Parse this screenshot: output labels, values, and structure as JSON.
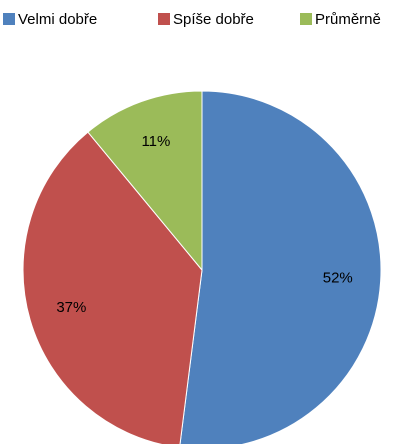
{
  "chart_data": {
    "type": "pie",
    "categories": [
      "Velmi dobře",
      "Spíše dobře",
      "Průměrně"
    ],
    "values": [
      52,
      37,
      11
    ],
    "value_labels": [
      "52%",
      "37%",
      "11%"
    ],
    "colors": [
      "#4f81bd",
      "#c0504d",
      "#9bbb59"
    ],
    "legend": "top"
  }
}
